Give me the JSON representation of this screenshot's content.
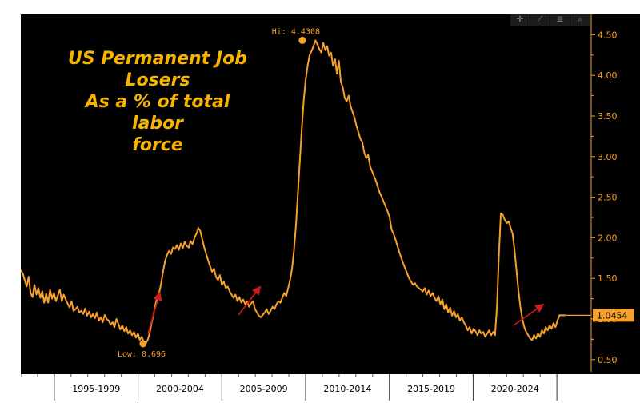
{
  "title_lines": [
    "US Permanent Job",
    "Losers",
    "As a % of total labor",
    "force"
  ],
  "toolbar_icons": [
    "crosshair-icon",
    "draw-icon",
    "menu-icon",
    "zoom-icon"
  ],
  "colors": {
    "line": "#f7a12a",
    "arrow": "#d11b1b",
    "background": "#000000",
    "axis": "#f7a12a",
    "title": "#f7b500",
    "x_axis_text": "#000000"
  },
  "chart_data": {
    "type": "line",
    "title": "US Permanent Job Losers As a % of total labor force",
    "x_start": 1993.0,
    "x_end": 2025.5,
    "xlim": [
      1993.0,
      2027.0
    ],
    "ylim": [
      0.35,
      4.75
    ],
    "y_ticks": [
      0.5,
      1.0,
      1.5,
      2.0,
      2.5,
      3.0,
      3.5,
      4.0,
      4.5
    ],
    "y_tick_labels": [
      "0.50",
      "1.00",
      "1.50",
      "2.00",
      "2.50",
      "3.00",
      "3.50",
      "4.00",
      "4.50"
    ],
    "x_period_labels": [
      "1995-1999",
      "2000-2004",
      "2005-2009",
      "2010-2014",
      "2015-2019",
      "2020-2024"
    ],
    "x_period_boundaries": [
      1995,
      2000,
      2005,
      2010,
      2015,
      2020,
      2025
    ],
    "last_value_label": "1.0454",
    "last_value": 1.0454,
    "annotations": [
      {
        "text": "Low: 0.696",
        "x": 2000.3,
        "y": 0.696
      },
      {
        "text": "Hi: 4.4308",
        "x": 2009.8,
        "y": 4.4308
      }
    ],
    "arrows": [
      {
        "from": [
          2000.6,
          0.82
        ],
        "to": [
          2001.3,
          1.33
        ]
      },
      {
        "from": [
          2006.0,
          1.05
        ],
        "to": [
          2007.3,
          1.4
        ]
      },
      {
        "from": [
          2022.4,
          0.92
        ],
        "to": [
          2024.2,
          1.18
        ]
      }
    ],
    "series": [
      {
        "values": [
          1.6,
          1.56,
          1.48,
          1.4,
          1.52,
          1.32,
          1.27,
          1.42,
          1.3,
          1.38,
          1.26,
          1.34,
          1.2,
          1.31,
          1.2,
          1.36,
          1.25,
          1.32,
          1.22,
          1.29,
          1.36,
          1.22,
          1.3,
          1.24,
          1.19,
          1.14,
          1.22,
          1.1,
          1.12,
          1.15,
          1.08,
          1.1,
          1.06,
          1.13,
          1.04,
          1.09,
          1.02,
          1.06,
          1.01,
          1.08,
          0.98,
          1.02,
          0.96,
          1.05,
          1.0,
          0.98,
          0.93,
          0.96,
          0.9,
          1.0,
          0.94,
          0.87,
          0.92,
          0.85,
          0.9,
          0.82,
          0.86,
          0.8,
          0.84,
          0.77,
          0.82,
          0.74,
          0.78,
          0.72,
          0.7,
          0.74,
          0.82,
          0.95,
          1.05,
          1.18,
          1.28,
          1.33,
          1.45,
          1.6,
          1.72,
          1.79,
          1.84,
          1.8,
          1.88,
          1.86,
          1.91,
          1.85,
          1.93,
          1.87,
          1.95,
          1.9,
          1.88,
          1.96,
          1.92,
          2.0,
          2.05,
          2.12,
          2.08,
          1.98,
          1.88,
          1.8,
          1.72,
          1.65,
          1.58,
          1.62,
          1.52,
          1.48,
          1.54,
          1.42,
          1.46,
          1.38,
          1.4,
          1.34,
          1.3,
          1.26,
          1.3,
          1.22,
          1.27,
          1.2,
          1.24,
          1.18,
          1.22,
          1.15,
          1.19,
          1.22,
          1.12,
          1.08,
          1.04,
          1.02,
          1.05,
          1.08,
          1.12,
          1.06,
          1.1,
          1.15,
          1.12,
          1.18,
          1.22,
          1.2,
          1.26,
          1.32,
          1.28,
          1.38,
          1.48,
          1.62,
          1.85,
          2.15,
          2.55,
          2.95,
          3.35,
          3.7,
          3.95,
          4.12,
          4.25,
          4.3,
          4.36,
          4.4308,
          4.38,
          4.32,
          4.28,
          4.4,
          4.31,
          4.36,
          4.24,
          4.28,
          4.12,
          4.2,
          4.02,
          4.18,
          3.92,
          3.85,
          3.72,
          3.68,
          3.75,
          3.62,
          3.55,
          3.48,
          3.38,
          3.3,
          3.22,
          3.18,
          3.05,
          2.98,
          3.02,
          2.88,
          2.82,
          2.76,
          2.7,
          2.62,
          2.55,
          2.5,
          2.44,
          2.38,
          2.32,
          2.25,
          2.1,
          2.05,
          1.98,
          1.9,
          1.82,
          1.75,
          1.68,
          1.62,
          1.56,
          1.5,
          1.46,
          1.42,
          1.44,
          1.4,
          1.38,
          1.36,
          1.34,
          1.38,
          1.3,
          1.35,
          1.28,
          1.32,
          1.26,
          1.22,
          1.28,
          1.18,
          1.24,
          1.12,
          1.18,
          1.08,
          1.14,
          1.04,
          1.1,
          1.02,
          1.06,
          0.98,
          1.02,
          0.96,
          0.92,
          0.86,
          0.9,
          0.82,
          0.88,
          0.85,
          0.8,
          0.86,
          0.82,
          0.84,
          0.78,
          0.82,
          0.86,
          0.8,
          0.84,
          0.8,
          1.15,
          1.8,
          2.3,
          2.28,
          2.22,
          2.18,
          2.2,
          2.12,
          2.05,
          1.85,
          1.6,
          1.35,
          1.15,
          1.0,
          0.9,
          0.84,
          0.8,
          0.76,
          0.74,
          0.8,
          0.76,
          0.82,
          0.78,
          0.86,
          0.82,
          0.9,
          0.86,
          0.92,
          0.88,
          0.95,
          0.9,
          0.98,
          1.0454,
          1.0454,
          1.0454,
          1.0454
        ]
      }
    ]
  }
}
